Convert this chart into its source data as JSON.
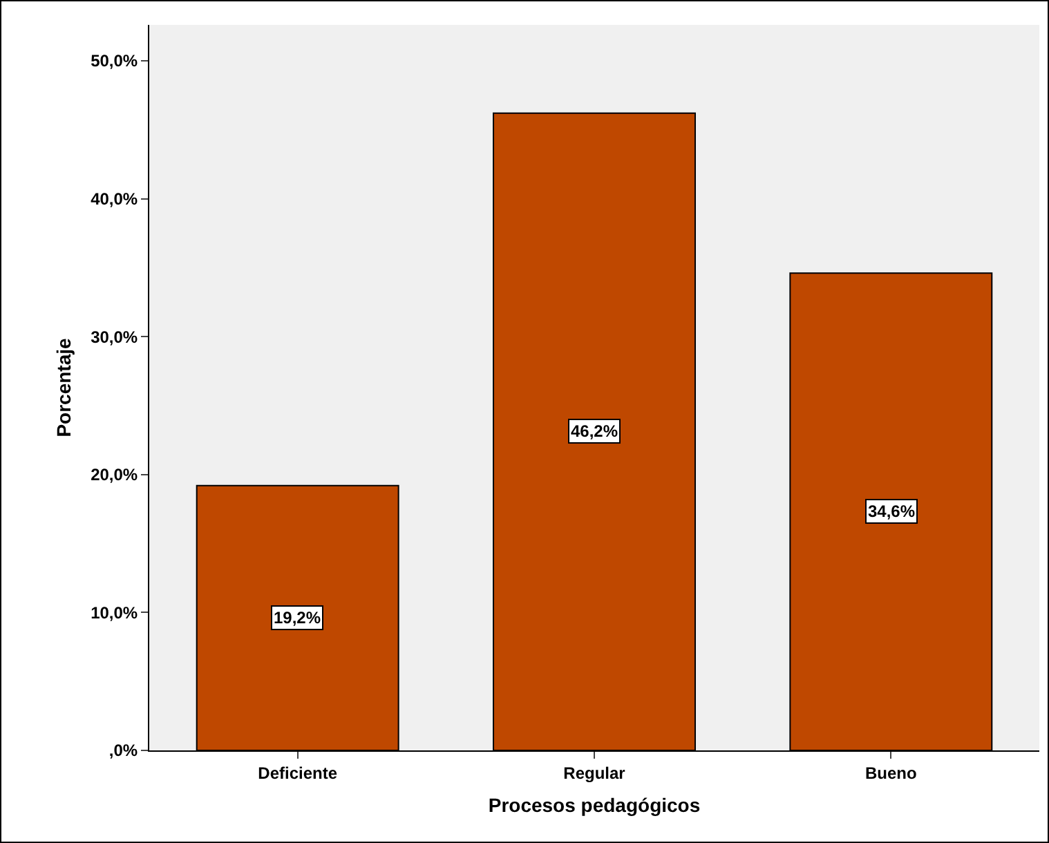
{
  "chart_data": {
    "type": "bar",
    "xlabel": "Procesos pedagógicos",
    "ylabel": "Porcentaje",
    "categories": [
      "Deficiente",
      "Regular",
      "Bueno"
    ],
    "values": [
      19.2,
      46.2,
      34.6
    ],
    "color": "#bf4800",
    "value_labels": [
      "19,2%",
      "46,2%",
      "34,6%"
    ],
    "ylim": [
      0,
      52.6
    ],
    "yticks": [
      {
        "value": 0,
        "label": ",0%"
      },
      {
        "value": 10,
        "label": "10,0%"
      },
      {
        "value": 20,
        "label": "20,0%"
      },
      {
        "value": 30,
        "label": "30,0%"
      },
      {
        "value": 40,
        "label": "40,0%"
      },
      {
        "value": 50,
        "label": "50,0%"
      }
    ],
    "grid": false
  }
}
